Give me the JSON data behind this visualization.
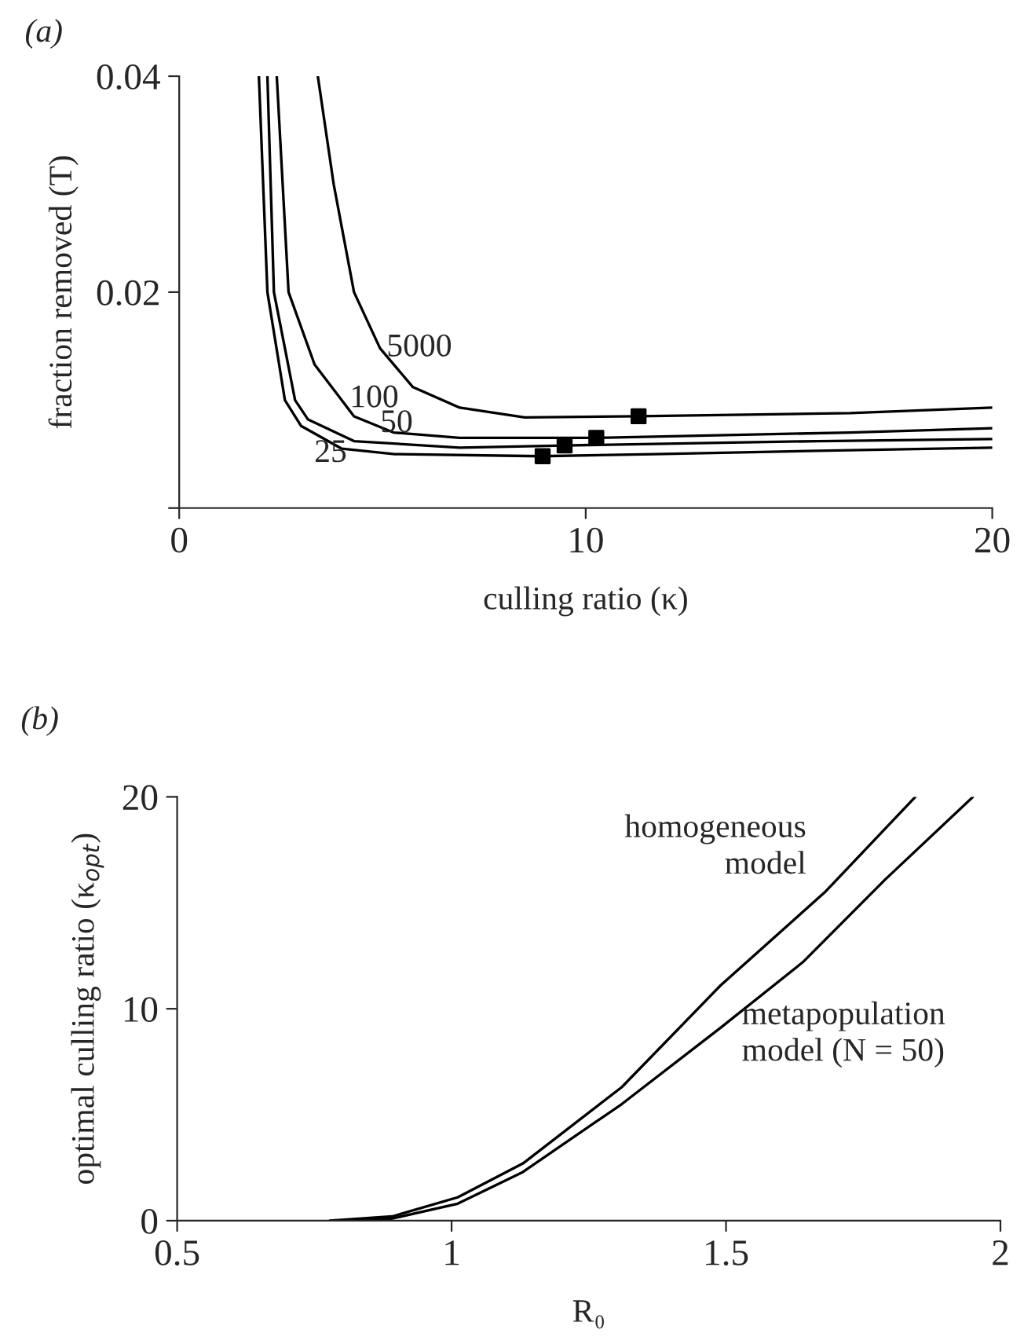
{
  "chart_data": [
    {
      "type": "line",
      "title": "(a)",
      "xlabel": "culling ratio (κ)",
      "ylabel": "fraction removed (T)",
      "xlim": [
        0,
        20
      ],
      "ylim": [
        0,
        0.04
      ],
      "xticks": [
        0,
        10,
        20
      ],
      "yticks": [
        {
          "value": 0,
          "label": null
        },
        0.02,
        0.04
      ],
      "grid": false,
      "legend": false,
      "marker": "none",
      "line_style": "solid",
      "series": [
        {
          "name": "25",
          "color": "#000000",
          "x": [
            1.96,
            2.17,
            2.6,
            3.0,
            4.0,
            5.3,
            8.9,
            11.7,
            15.7,
            20
          ],
          "values": [
            0.04,
            0.02,
            0.01,
            0.0076,
            0.0055,
            0.005,
            0.0048,
            0.005,
            0.0053,
            0.0056
          ]
        },
        {
          "name": "50",
          "color": "#000000",
          "x": [
            2.17,
            2.33,
            2.85,
            3.17,
            4.3,
            6.9,
            9.48,
            15.7,
            20
          ],
          "values": [
            0.04,
            0.02,
            0.01,
            0.0082,
            0.0062,
            0.0056,
            0.0058,
            0.0062,
            0.0064
          ]
        },
        {
          "name": "100",
          "color": "#000000",
          "x": [
            2.4,
            2.69,
            3.33,
            4.3,
            5.27,
            6.9,
            10.26,
            16.5,
            20
          ],
          "values": [
            0.04,
            0.02,
            0.0133,
            0.0085,
            0.007,
            0.0065,
            0.0065,
            0.007,
            0.0074
          ]
        },
        {
          "name": "5000",
          "color": "#000000",
          "x": [
            3.41,
            3.8,
            4.3,
            4.94,
            5.75,
            6.9,
            8.5,
            11.3,
            16.5,
            20
          ],
          "values": [
            0.04,
            0.03,
            0.02,
            0.0148,
            0.0112,
            0.0093,
            0.0084,
            0.0085,
            0.0088,
            0.0093
          ]
        },
        {
          "type": "scatter",
          "marker": "square",
          "color": "#000000",
          "x": [
            8.94,
            9.48,
            10.26,
            11.3
          ],
          "values": [
            0.0048,
            0.0058,
            0.0065,
            0.0085
          ]
        }
      ]
    },
    {
      "type": "line",
      "title": "(b)",
      "xlabel": "R₀",
      "ylabel": "optimal culling ratio (κ$_{opt}$)",
      "xlim": [
        0.5,
        2
      ],
      "ylim": [
        0,
        20
      ],
      "xticks": [
        0.5,
        1,
        1.5,
        2
      ],
      "yticks": [
        0,
        10,
        20
      ],
      "grid": false,
      "legend": false,
      "marker": "none",
      "line_style": "solid",
      "series": [
        {
          "name": "homogeneous\nmodel",
          "color": "#000000",
          "x": [
            0.778,
            0.892,
            1.011,
            1.13,
            1.31,
            1.49,
            1.68,
            1.845
          ],
          "values": [
            0,
            0.2,
            1.1,
            2.7,
            6.3,
            11.1,
            15.5,
            20
          ]
        },
        {
          "name": "metapopulation\nmodel (N = 50)",
          "color": "#000000",
          "x": [
            0.796,
            0.892,
            1.011,
            1.13,
            1.31,
            1.49,
            1.64,
            1.79,
            1.95
          ],
          "values": [
            0,
            0.1,
            0.8,
            2.3,
            5.5,
            9.1,
            12.2,
            16.1,
            20
          ]
        }
      ]
    }
  ]
}
